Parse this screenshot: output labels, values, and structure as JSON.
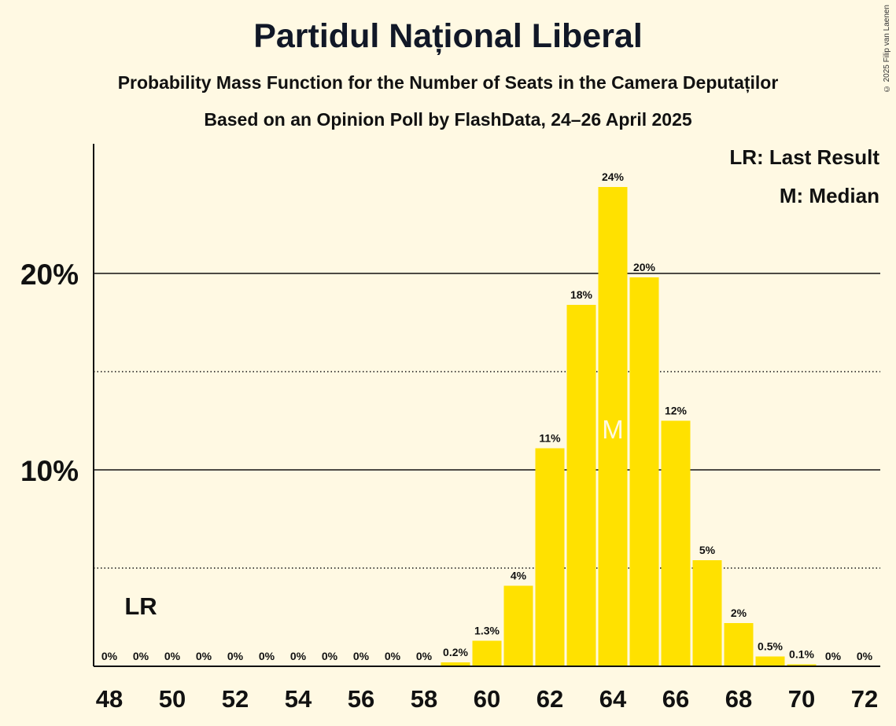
{
  "header": {
    "title": "Partidul Național Liberal",
    "subtitle": "Probability Mass Function for the Number of Seats in the Camera Deputaților",
    "source": "Based on an Opinion Poll by FlashData, 24–26 April 2025",
    "copyright": "© 2025 Filip van Laenen"
  },
  "legend": {
    "last_result": "LR: Last Result",
    "median": "M: Median"
  },
  "chart_data": {
    "type": "bar",
    "categories": [
      48,
      49,
      50,
      51,
      52,
      53,
      54,
      55,
      56,
      57,
      58,
      59,
      60,
      61,
      62,
      63,
      64,
      65,
      66,
      67,
      68,
      69,
      70,
      71,
      72
    ],
    "values": [
      0,
      0,
      0,
      0,
      0,
      0,
      0,
      0,
      0,
      0,
      0,
      0.2,
      1.3,
      4.1,
      11.1,
      18.4,
      24.4,
      19.8,
      12.5,
      5.4,
      2.2,
      0.5,
      0.1,
      0,
      0
    ],
    "labels": [
      "0%",
      "0%",
      "0%",
      "0%",
      "0%",
      "0%",
      "0%",
      "0%",
      "0%",
      "0%",
      "0%",
      "0.2%",
      "1.3%",
      "4%",
      "11%",
      "18%",
      "24%",
      "20%",
      "12%",
      "5%",
      "2%",
      "0.5%",
      "0.1%",
      "0%",
      "0%"
    ],
    "x_ticks": [
      48,
      50,
      52,
      54,
      56,
      58,
      60,
      62,
      64,
      66,
      68,
      70,
      72
    ],
    "y_ticks": [
      {
        "value": 10,
        "label": "10%"
      },
      {
        "value": 20,
        "label": "20%"
      }
    ],
    "dotted_grid": [
      5,
      15
    ],
    "ylim": [
      0,
      26.5
    ],
    "last_result": {
      "seat": 49,
      "marker": "LR"
    },
    "median": {
      "seat": 64,
      "marker": "M"
    },
    "colors": {
      "bar": "#FFE100",
      "text_on_bar": "#FFF9E3",
      "axis": "#111111"
    }
  }
}
